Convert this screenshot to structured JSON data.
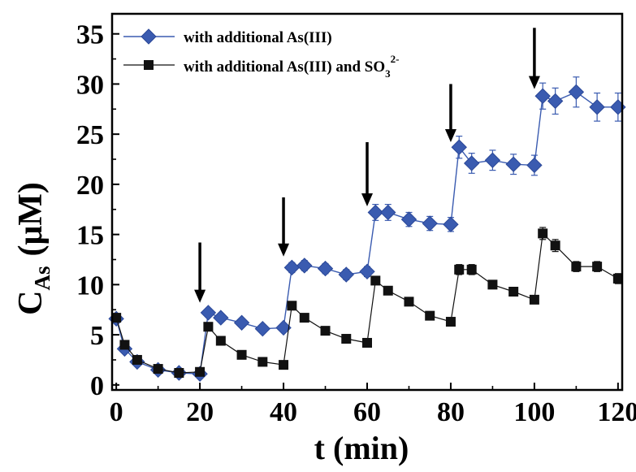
{
  "chart_data": {
    "type": "line",
    "title": "",
    "xlabel": "t (min)",
    "ylabel": {
      "main": "C",
      "sub": "As",
      "unit": "(μM)"
    },
    "xlim": [
      -1,
      121
    ],
    "ylim": [
      -0.5,
      37
    ],
    "xticks": [
      0,
      20,
      40,
      60,
      80,
      100,
      120
    ],
    "yticks": [
      0,
      5,
      10,
      15,
      20,
      25,
      30,
      35
    ],
    "grid": false,
    "legend_position": "top-left",
    "series": [
      {
        "name": "with additional As(III)",
        "marker": "diamond",
        "color": "#3a5bb0",
        "x": [
          0,
          2,
          5,
          10,
          15,
          20,
          22,
          25,
          30,
          35,
          40,
          42,
          45,
          50,
          55,
          60,
          62,
          65,
          70,
          75,
          80,
          82,
          85,
          90,
          95,
          100,
          102,
          105,
          110,
          115,
          120
        ],
        "y": [
          6.6,
          3.6,
          2.3,
          1.5,
          1.2,
          1.1,
          7.2,
          6.7,
          6.2,
          5.6,
          5.7,
          11.7,
          11.9,
          11.6,
          11.0,
          11.3,
          17.2,
          17.2,
          16.5,
          16.1,
          16.0,
          23.7,
          22.1,
          22.4,
          22.0,
          21.9,
          28.8,
          28.3,
          29.2,
          27.7,
          27.7
        ],
        "err": [
          0.4,
          0.4,
          0.3,
          0.3,
          0.3,
          0.3,
          0.4,
          0.4,
          0.4,
          0.4,
          0.4,
          0.5,
          0.5,
          0.5,
          0.5,
          0.5,
          0.8,
          0.8,
          0.7,
          0.7,
          0.7,
          1.1,
          1.0,
          1.0,
          1.0,
          1.0,
          1.3,
          1.3,
          1.5,
          1.4,
          1.4
        ]
      },
      {
        "name": "with additional As(III) and SO",
        "name_sub": "3",
        "name_sup": "2-",
        "marker": "square",
        "color": "#111111",
        "x": [
          0,
          2,
          5,
          10,
          15,
          20,
          22,
          25,
          30,
          35,
          40,
          42,
          45,
          50,
          55,
          60,
          62,
          65,
          70,
          75,
          80,
          82,
          85,
          90,
          95,
          100,
          102,
          105,
          110,
          115,
          120
        ],
        "y": [
          6.7,
          4.0,
          2.5,
          1.6,
          1.2,
          1.3,
          5.8,
          4.4,
          3.0,
          2.3,
          2.0,
          7.9,
          6.7,
          5.4,
          4.6,
          4.2,
          10.4,
          9.4,
          8.3,
          6.9,
          6.3,
          11.5,
          11.5,
          10.0,
          9.3,
          8.5,
          15.1,
          13.9,
          11.8,
          11.8,
          10.6
        ],
        "err": [
          0.3,
          0.3,
          0.2,
          0.2,
          0.2,
          0.2,
          0.3,
          0.3,
          0.2,
          0.2,
          0.2,
          0.4,
          0.3,
          0.3,
          0.3,
          0.3,
          0.4,
          0.4,
          0.3,
          0.3,
          0.3,
          0.5,
          0.5,
          0.4,
          0.4,
          0.4,
          0.6,
          0.6,
          0.5,
          0.5,
          0.5
        ]
      }
    ],
    "annotations": {
      "arrows": [
        {
          "x": 20,
          "y_top": 14.2,
          "y_tip": 8.2
        },
        {
          "x": 40,
          "y_top": 18.7,
          "y_tip": 12.8
        },
        {
          "x": 60,
          "y_top": 24.2,
          "y_tip": 17.8
        },
        {
          "x": 80,
          "y_top": 30.0,
          "y_tip": 24.2
        },
        {
          "x": 100,
          "y_top": 35.6,
          "y_tip": 29.5
        }
      ]
    }
  }
}
